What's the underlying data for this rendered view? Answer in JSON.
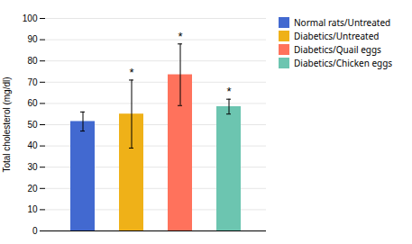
{
  "chart_data": {
    "type": "bar",
    "categories": [
      "Normal rats/Untreated",
      "Diabetics/Untreated",
      "Diabetics/Quail eggs",
      "Diabetics/Chicken eggs"
    ],
    "values": [
      51.5,
      55.0,
      73.5,
      58.5
    ],
    "errors": [
      4.5,
      16.0,
      14.5,
      3.5
    ],
    "ylabel": "Total cholesterol (mg/dl)",
    "ylim": [
      0,
      100
    ],
    "yticks": [
      0,
      10,
      20,
      30,
      40,
      50,
      60,
      70,
      80,
      90,
      100
    ],
    "grid": true,
    "legend": "right",
    "tick_labels": "y",
    "annotations": [
      {
        "category": "Diabetics/Untreated",
        "text": "*"
      },
      {
        "category": "Diabetics/Quail eggs",
        "text": "*"
      },
      {
        "category": "Diabetics/Chicken eggs",
        "text": "*"
      }
    ]
  }
}
